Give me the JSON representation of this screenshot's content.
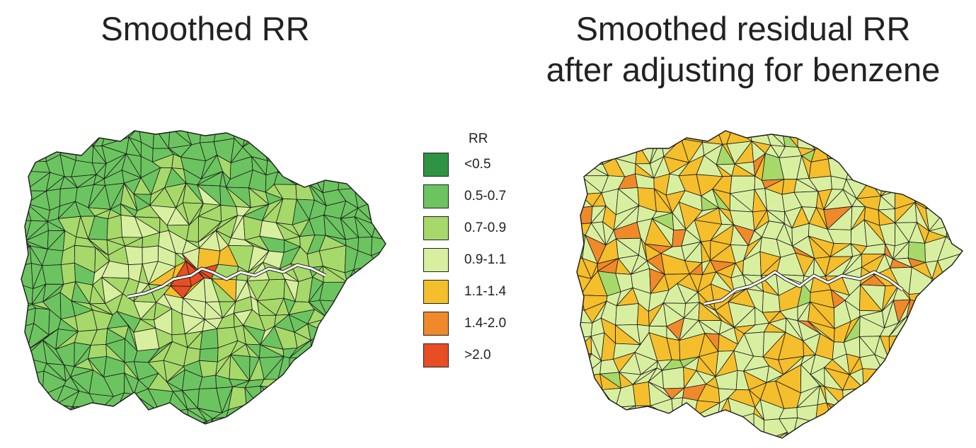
{
  "panels": {
    "left": {
      "title": "Smoothed RR"
    },
    "right": {
      "title_line1": "Smoothed residual RR",
      "title_line2": "after adjusting for benzene"
    }
  },
  "legend": {
    "title": "RR",
    "classes": [
      {
        "label": "<0.5",
        "color": "#2e9444"
      },
      {
        "label": "0.5-0.7",
        "color": "#6cc460"
      },
      {
        "label": "0.7-0.9",
        "color": "#a6d96a"
      },
      {
        "label": "0.9-1.1",
        "color": "#d9efa0"
      },
      {
        "label": "1.1-1.4",
        "color": "#f4be2c"
      },
      {
        "label": "1.4-2.0",
        "color": "#f0892a"
      },
      {
        "label": ">2.0",
        "color": "#e84e23"
      }
    ]
  },
  "map_style": {
    "river_color": "#ffffff",
    "border_color": "#1a1a1a"
  }
}
